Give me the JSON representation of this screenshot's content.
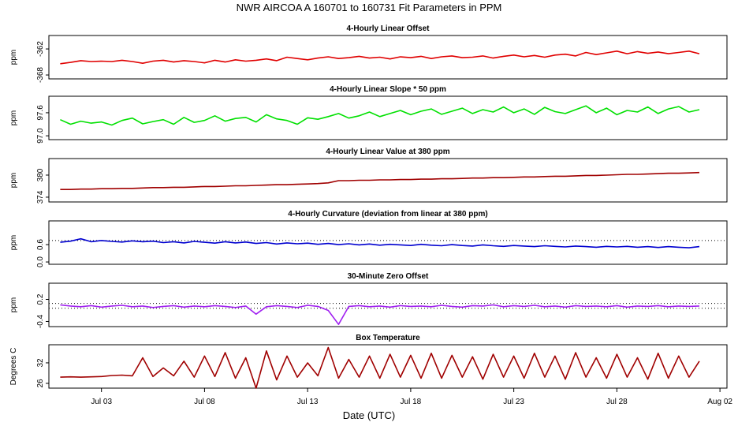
{
  "title": "NWR   AIRCOA A   160701 to 160731   Fit Parameters in PPM",
  "x_label": "Date (UTC)",
  "chart_data": [
    {
      "type": "line",
      "title": "4-Hourly Linear Offset",
      "y_label": "ppm",
      "color": "#e00000",
      "xlim": [
        0.45,
        33.34
      ],
      "ylim": [
        -368.9,
        -358.9
      ],
      "yticks": [
        -368,
        -362
      ],
      "x": [
        1,
        1.5,
        2,
        2.5,
        3,
        3.5,
        4,
        4.5,
        5,
        5.5,
        6,
        6.5,
        7,
        7.5,
        8,
        8.5,
        9,
        9.5,
        10,
        10.5,
        11,
        11.5,
        12,
        12.5,
        13,
        13.5,
        14,
        14.5,
        15,
        15.5,
        16,
        16.5,
        17,
        17.5,
        18,
        18.5,
        19,
        19.5,
        20,
        20.5,
        21,
        21.5,
        22,
        22.5,
        23,
        23.5,
        24,
        24.5,
        25,
        25.5,
        26,
        26.5,
        27,
        27.5,
        28,
        28.5,
        29,
        29.5,
        30,
        30.5,
        31,
        31.5,
        32
      ],
      "values": [
        -365.4,
        -365.1,
        -364.7,
        -364.9,
        -364.8,
        -364.9,
        -364.6,
        -364.9,
        -365.3,
        -364.8,
        -364.6,
        -365.0,
        -364.7,
        -364.9,
        -365.2,
        -364.6,
        -365.0,
        -364.5,
        -364.8,
        -364.6,
        -364.3,
        -364.7,
        -363.9,
        -364.2,
        -364.5,
        -364.1,
        -363.8,
        -364.2,
        -364.0,
        -363.7,
        -364.1,
        -363.9,
        -364.3,
        -363.8,
        -364.0,
        -363.7,
        -364.2,
        -363.8,
        -363.6,
        -364.0,
        -363.9,
        -363.6,
        -364.1,
        -363.7,
        -363.4,
        -363.8,
        -363.5,
        -363.9,
        -363.4,
        -363.2,
        -363.6,
        -362.8,
        -363.3,
        -362.9,
        -362.5,
        -363.1,
        -362.6,
        -363.0,
        -362.7,
        -363.1,
        -362.8,
        -362.5,
        -363.1
      ]
    },
    {
      "type": "line",
      "title": "4-Hourly Linear Slope * 50 ppm",
      "y_label": "ppm",
      "color": "#00e000",
      "xlim": [
        0.45,
        33.34
      ],
      "ylim": [
        96.9,
        98.03
      ],
      "yticks": [
        {
          "value": 97,
          "label": "97.0"
        },
        97.6
      ],
      "x": [
        1,
        1.5,
        2,
        2.5,
        3,
        3.5,
        4,
        4.5,
        5,
        5.5,
        6,
        6.5,
        7,
        7.5,
        8,
        8.5,
        9,
        9.5,
        10,
        10.5,
        11,
        11.5,
        12,
        12.5,
        13,
        13.5,
        14,
        14.5,
        15,
        15.5,
        16,
        16.5,
        17,
        17.5,
        18,
        18.5,
        19,
        19.5,
        20,
        20.5,
        21,
        21.5,
        22,
        22.5,
        23,
        23.5,
        24,
        24.5,
        25,
        25.5,
        26,
        26.5,
        27,
        27.5,
        28,
        28.5,
        29,
        29.5,
        30,
        30.5,
        31,
        31.5,
        32
      ],
      "values": [
        97.42,
        97.3,
        97.38,
        97.33,
        97.36,
        97.28,
        97.4,
        97.46,
        97.31,
        97.37,
        97.42,
        97.3,
        97.48,
        97.35,
        97.4,
        97.52,
        97.38,
        97.45,
        97.48,
        97.36,
        97.55,
        97.44,
        97.4,
        97.3,
        97.47,
        97.43,
        97.5,
        97.58,
        97.46,
        97.52,
        97.62,
        97.5,
        97.58,
        97.66,
        97.55,
        97.64,
        97.7,
        97.56,
        97.64,
        97.72,
        97.58,
        97.68,
        97.62,
        97.75,
        97.6,
        97.7,
        97.56,
        97.74,
        97.63,
        97.58,
        97.68,
        97.78,
        97.6,
        97.72,
        97.55,
        97.66,
        97.62,
        97.75,
        97.58,
        97.7,
        97.76,
        97.62,
        97.68
      ]
    },
    {
      "type": "line",
      "title": "4-Hourly Linear Value at 380 ppm",
      "y_label": "ppm",
      "color": "#a00000",
      "xlim": [
        0.45,
        33.34
      ],
      "ylim": [
        372.7,
        384.5
      ],
      "yticks": [
        374,
        380
      ],
      "x": [
        1,
        1.5,
        2,
        2.5,
        3,
        3.5,
        4,
        4.5,
        5,
        5.5,
        6,
        6.5,
        7,
        7.5,
        8,
        8.5,
        9,
        9.5,
        10,
        10.5,
        11,
        11.5,
        12,
        12.5,
        13,
        13.5,
        14,
        14.5,
        15,
        15.5,
        16,
        16.5,
        17,
        17.5,
        18,
        18.5,
        19,
        19.5,
        20,
        20.5,
        21,
        21.5,
        22,
        22.5,
        23,
        23.5,
        24,
        24.5,
        25,
        25.5,
        26,
        26.5,
        27,
        27.5,
        28,
        28.5,
        29,
        29.5,
        30,
        30.5,
        31,
        31.5,
        32
      ],
      "values": [
        376.1,
        376.1,
        376.2,
        376.2,
        376.3,
        376.3,
        376.4,
        376.4,
        376.5,
        376.6,
        376.6,
        376.7,
        376.7,
        376.8,
        376.9,
        376.9,
        377.0,
        377.1,
        377.1,
        377.2,
        377.3,
        377.4,
        377.4,
        377.5,
        377.6,
        377.7,
        377.9,
        378.5,
        378.5,
        378.6,
        378.6,
        378.7,
        378.7,
        378.8,
        378.8,
        378.9,
        378.9,
        379.0,
        379.0,
        379.1,
        379.2,
        379.2,
        379.3,
        379.3,
        379.4,
        379.5,
        379.5,
        379.6,
        379.7,
        379.7,
        379.8,
        379.9,
        379.9,
        380.0,
        380.1,
        380.2,
        380.2,
        380.3,
        380.4,
        380.5,
        380.5,
        380.6,
        380.7
      ]
    },
    {
      "type": "line",
      "title": "4-Hourly Curvature (deviation from linear at 380 ppm)",
      "y_label": "ppm",
      "color": "#0000d0",
      "xlim": [
        0.45,
        33.34
      ],
      "ylim": [
        -0.08,
        1.42
      ],
      "yticks": [
        {
          "value": 0,
          "label": "0.0"
        },
        0.6
      ],
      "reference_lines": [
        0.74
      ],
      "x": [
        1,
        1.5,
        2,
        2.5,
        3,
        3.5,
        4,
        4.5,
        5,
        5.5,
        6,
        6.5,
        7,
        7.5,
        8,
        8.5,
        9,
        9.5,
        10,
        10.5,
        11,
        11.5,
        12,
        12.5,
        13,
        13.5,
        14,
        14.5,
        15,
        15.5,
        16,
        16.5,
        17,
        17.5,
        18,
        18.5,
        19,
        19.5,
        20,
        20.5,
        21,
        21.5,
        22,
        22.5,
        23,
        23.5,
        24,
        24.5,
        25,
        25.5,
        26,
        26.5,
        27,
        27.5,
        28,
        28.5,
        29,
        29.5,
        30,
        30.5,
        31,
        31.5,
        32
      ],
      "values": [
        0.68,
        0.72,
        0.8,
        0.7,
        0.74,
        0.71,
        0.69,
        0.73,
        0.7,
        0.72,
        0.67,
        0.7,
        0.66,
        0.71,
        0.68,
        0.65,
        0.7,
        0.66,
        0.69,
        0.64,
        0.67,
        0.62,
        0.66,
        0.63,
        0.65,
        0.61,
        0.64,
        0.6,
        0.63,
        0.59,
        0.62,
        0.58,
        0.61,
        0.59,
        0.57,
        0.61,
        0.58,
        0.56,
        0.6,
        0.57,
        0.55,
        0.59,
        0.56,
        0.54,
        0.57,
        0.55,
        0.53,
        0.56,
        0.54,
        0.52,
        0.55,
        0.53,
        0.51,
        0.54,
        0.52,
        0.54,
        0.51,
        0.53,
        0.5,
        0.53,
        0.51,
        0.49,
        0.53
      ]
    },
    {
      "type": "line",
      "title": "30-Minute Zero Offset",
      "y_label": "ppm",
      "color": "#a020f0",
      "xlim": [
        0.45,
        33.34
      ],
      "ylim": [
        -0.54,
        0.64
      ],
      "yticks": [
        -0.4,
        0.2
      ],
      "reference_lines": [
        0.09,
        -0.04
      ],
      "x": [
        1,
        1.5,
        2,
        2.5,
        3,
        3.5,
        4,
        4.5,
        5,
        5.5,
        6,
        6.5,
        7,
        7.5,
        8,
        8.5,
        9,
        9.5,
        10,
        10.5,
        11,
        11.5,
        12,
        12.5,
        13,
        13.5,
        14,
        14.5,
        15,
        15.5,
        16,
        16.5,
        17,
        17.5,
        18,
        18.5,
        19,
        19.5,
        20,
        20.5,
        21,
        21.5,
        22,
        22.5,
        23,
        23.5,
        24,
        24.5,
        25,
        25.5,
        26,
        26.5,
        27,
        27.5,
        28,
        28.5,
        29,
        29.5,
        30,
        30.5,
        31,
        31.5,
        32
      ],
      "values": [
        0.05,
        0.02,
        0.0,
        0.03,
        -0.01,
        0.02,
        0.04,
        0.0,
        0.02,
        -0.02,
        0.01,
        0.03,
        -0.01,
        0.02,
        0.0,
        0.03,
        0.01,
        -0.02,
        0.02,
        -0.2,
        0.0,
        0.03,
        0.01,
        -0.02,
        0.04,
        0.01,
        -0.1,
        -0.48,
        0.01,
        0.03,
        0.0,
        0.02,
        -0.01,
        0.03,
        0.01,
        0.02,
        0.0,
        0.04,
        0.01,
        -0.01,
        0.03,
        0.02,
        0.05,
        0.0,
        0.03,
        0.01,
        0.04,
        0.0,
        0.02,
        -0.01,
        0.03,
        0.01,
        0.02,
        0.0,
        0.03,
        -0.01,
        0.02,
        0.01,
        0.03,
        0.0,
        0.02,
        0.01,
        0.02
      ]
    },
    {
      "type": "line",
      "title": "Box Temperature",
      "y_label": "Degrees C",
      "color": "#a00000",
      "xlim": [
        0.45,
        33.34
      ],
      "ylim": [
        24.6,
        37.3
      ],
      "yticks": [
        26,
        32
      ],
      "xticks": [
        {
          "value": 3,
          "label": "Jul 03"
        },
        {
          "value": 8,
          "label": "Jul 08"
        },
        {
          "value": 13,
          "label": "Jul 13"
        },
        {
          "value": 18,
          "label": "Jul 18"
        },
        {
          "value": 23,
          "label": "Jul 23"
        },
        {
          "value": 28,
          "label": "Jul 28"
        },
        {
          "value": 33,
          "label": "Aug 02"
        }
      ],
      "x": [
        1,
        1.5,
        2,
        2.5,
        3,
        3.5,
        4,
        4.5,
        5,
        5.5,
        6,
        6.5,
        7,
        7.5,
        8,
        8.5,
        9,
        9.5,
        10,
        10.5,
        11,
        11.5,
        12,
        12.5,
        13,
        13.5,
        14,
        14.5,
        15,
        15.5,
        16,
        16.5,
        17,
        17.5,
        18,
        18.5,
        19,
        19.5,
        20,
        20.5,
        21,
        21.5,
        22,
        22.5,
        23,
        23.5,
        24,
        24.5,
        25,
        25.5,
        26,
        26.5,
        27,
        27.5,
        28,
        28.5,
        29,
        29.5,
        30,
        30.5,
        31,
        31.5,
        32
      ],
      "values": [
        27.8,
        27.9,
        27.8,
        27.9,
        28.0,
        28.3,
        28.4,
        28.2,
        33.5,
        28.0,
        30.5,
        28.2,
        32.5,
        27.8,
        34.0,
        28.0,
        35.0,
        27.5,
        33.5,
        24.6,
        35.5,
        27.0,
        34.0,
        27.8,
        32.0,
        28.2,
        36.5,
        27.5,
        33.0,
        27.8,
        34.0,
        27.5,
        34.5,
        27.8,
        34.2,
        27.5,
        34.8,
        27.5,
        34.2,
        27.8,
        33.8,
        27.2,
        34.5,
        27.8,
        34.0,
        27.5,
        34.8,
        27.8,
        34.0,
        27.2,
        35.0,
        27.8,
        33.5,
        27.5,
        34.5,
        27.8,
        33.5,
        27.2,
        34.8,
        27.5,
        34.0,
        27.8,
        32.5
      ]
    }
  ]
}
